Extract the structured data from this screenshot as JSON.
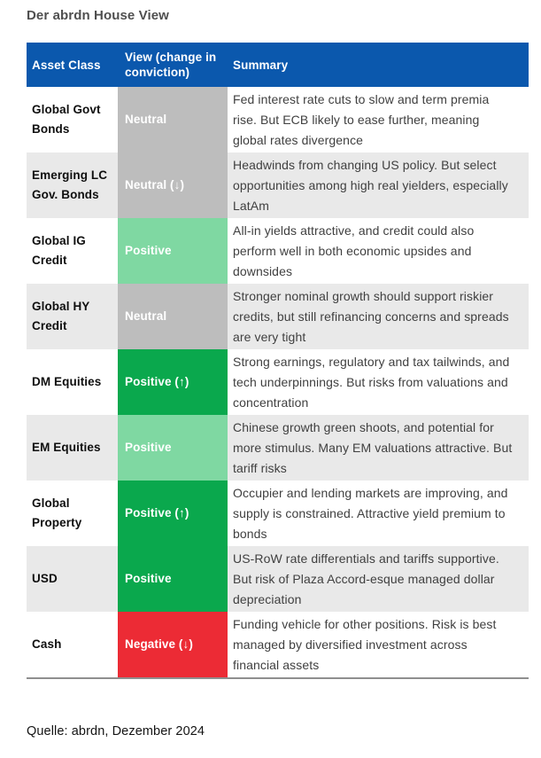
{
  "page": {
    "title": "Der abrdn House View",
    "source_note": "Quelle: abrdn, Dezember 2024"
  },
  "colors": {
    "header_bg": "#0b58ad",
    "header_text": "#ffffff",
    "row_alt_bg": "#e9e9e9",
    "table_bottom_border": "#8f8f8f",
    "view_tones": {
      "neutral": "#bdbdbd",
      "positive": "#7fd8a2",
      "positive_strong": "#0aa84d",
      "negative": "#ec2b35"
    }
  },
  "table": {
    "columns": [
      "Asset Class",
      "View (change in conviction)",
      "Summary"
    ],
    "rows": [
      {
        "asset_class": "Global Govt Bonds",
        "view": "Neutral",
        "tone": "neutral",
        "summary": "Fed interest rate cuts to slow and term premia rise. But ECB likely to ease further, meaning global rates divergence"
      },
      {
        "asset_class": "Emerging LC Gov. Bonds",
        "view": "Neutral (↓)",
        "tone": "neutral",
        "summary": "Headwinds from changing US policy. But select opportunities among high real yielders, especially LatAm"
      },
      {
        "asset_class": "Global IG Credit",
        "view": "Positive",
        "tone": "positive",
        "summary": "All-in yields attractive, and credit could also perform well in both economic upsides and downsides"
      },
      {
        "asset_class": "Global HY Credit",
        "view": "Neutral",
        "tone": "neutral",
        "summary": "Stronger nominal growth should support riskier credits, but still refinancing concerns and spreads are very tight"
      },
      {
        "asset_class": "DM Equities",
        "view": "Positive (↑)",
        "tone": "positive_strong",
        "summary": "Strong earnings, regulatory and tax tailwinds, and tech underpinnings. But risks from valuations and concentration"
      },
      {
        "asset_class": "EM Equities",
        "view": "Positive",
        "tone": "positive",
        "summary": "Chinese growth green shoots, and potential for more stimulus. Many EM valuations attractive. But tariff risks"
      },
      {
        "asset_class": "Global Property",
        "view": "Positive (↑)",
        "tone": "positive_strong",
        "summary": "Occupier and lending markets are improving, and supply is constrained. Attractive yield premium to bonds"
      },
      {
        "asset_class": "USD",
        "view": "Positive",
        "tone": "positive_strong",
        "summary": "US-RoW rate differentials and tariffs supportive. But risk of Plaza Accord-esque managed dollar depreciation"
      },
      {
        "asset_class": "Cash",
        "view": "Negative (↓)",
        "tone": "negative",
        "summary": "Funding vehicle for other positions. Risk is best managed by diversified investment across financial assets"
      }
    ]
  }
}
